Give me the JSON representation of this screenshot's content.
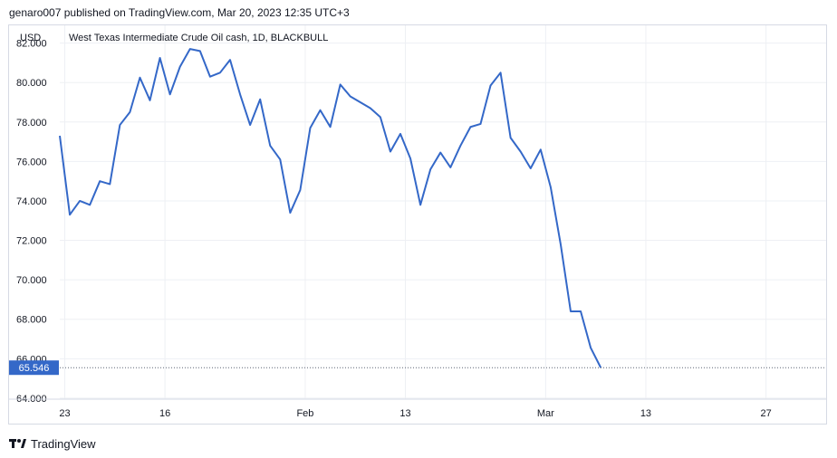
{
  "header": {
    "published_text": "genaro007 published on TradingView.com, Mar 20, 2023 12:35 UTC+3"
  },
  "footer": {
    "brand": "TradingView",
    "logo_icon": "tradingview-logo-icon"
  },
  "colors": {
    "line": "#3468c8",
    "price_label_bg": "#3468c8",
    "grid": "#eef0f4",
    "axis_text": "#131722"
  },
  "chart_data": {
    "type": "line",
    "title": "West Texas Intermediate Crude Oil cash, 1D, BLACKBULL",
    "currency_label": "USD",
    "y_ticks": [
      "82.000",
      "80.000",
      "78.000",
      "76.000",
      "74.000",
      "72.000",
      "70.000",
      "68.000",
      "66.000",
      "64.000"
    ],
    "ylim": [
      63.95,
      82.9
    ],
    "x_tick_labels": [
      "23",
      "16",
      "Feb",
      "13",
      "Mar",
      "13",
      "27"
    ],
    "x_tick_index": [
      0.5,
      10.5,
      24.5,
      34.5,
      48.5,
      58.5,
      70.5
    ],
    "x_range": [
      0,
      76.5
    ],
    "current_price": "65.546",
    "last_value_line": "dotted",
    "grid": true,
    "series": [
      {
        "values": [
          77.3,
          73.3,
          74.0,
          73.8,
          75.0,
          74.85,
          77.85,
          78.5,
          80.25,
          79.1,
          81.25,
          79.4,
          80.8,
          81.7,
          81.6,
          80.3,
          80.5,
          81.15,
          79.4,
          77.85,
          79.15,
          76.8,
          76.1,
          73.4,
          74.55,
          77.7,
          78.6,
          77.75,
          79.9,
          79.3,
          79.0,
          78.7,
          78.25,
          76.5,
          77.4,
          76.15,
          73.8,
          75.6,
          76.45,
          75.7,
          76.8,
          77.75,
          77.9,
          79.85,
          80.5,
          77.2,
          76.5,
          75.65,
          76.6,
          74.7,
          71.8,
          68.4,
          68.4,
          66.55,
          65.55
        ]
      }
    ]
  }
}
